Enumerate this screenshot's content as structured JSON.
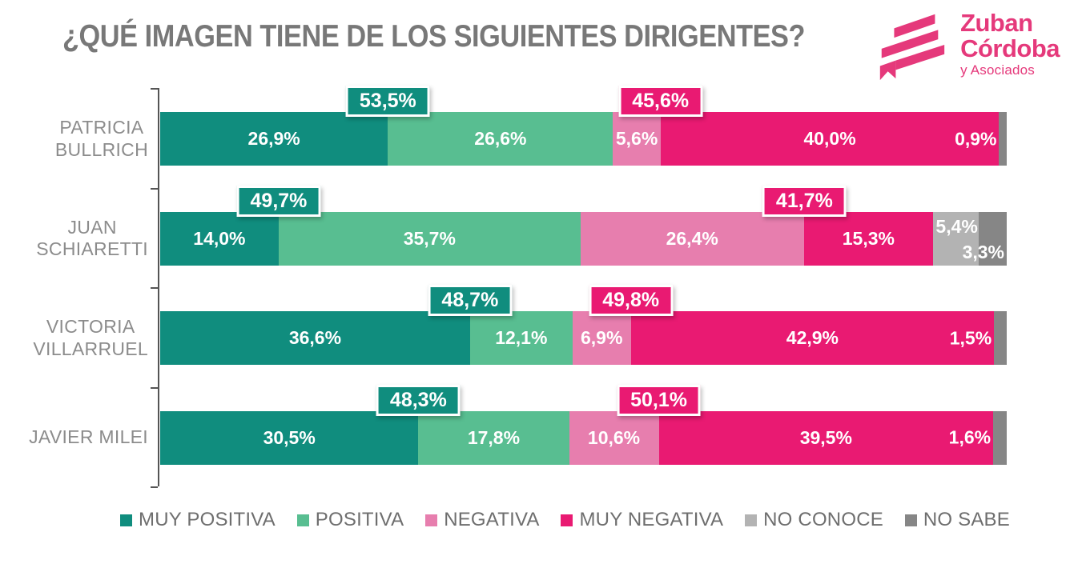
{
  "title": "¿QUÉ IMAGEN TIENE DE LOS SIGUIENTES DIRIGENTES?",
  "logo": {
    "line1": "Zuban",
    "line2": "Córdoba",
    "line3": "y Asociados",
    "color": "#E5397B"
  },
  "chart_data": {
    "type": "bar",
    "orientation": "horizontal",
    "stacked": true,
    "unit": "%",
    "xlim": [
      0,
      100
    ],
    "legend_position": "bottom",
    "grid": false,
    "series": [
      {
        "name": "MUY POSITIVA",
        "color": "#108D7E"
      },
      {
        "name": "POSITIVA",
        "color": "#58BE91"
      },
      {
        "name": "NEGATIVA",
        "color": "#E77EAE"
      },
      {
        "name": "MUY NEGATIVA",
        "color": "#E91A72"
      },
      {
        "name": "NO CONOCE",
        "color": "#B3B3B3"
      },
      {
        "name": "NO SABE",
        "color": "#868686"
      }
    ],
    "categories": [
      "PATRICIA BULLRICH",
      "JUAN SCHIARETTI",
      "VICTORIA VILLARRUEL",
      "JAVIER MILEI"
    ],
    "rows": [
      {
        "label_lines": [
          "PATRICIA",
          "BULLRICH"
        ],
        "segments": [
          {
            "series": "MUY POSITIVA",
            "value": 26.9,
            "display": "26,9%",
            "mode": "center"
          },
          {
            "series": "POSITIVA",
            "value": 26.6,
            "display": "26,6%",
            "mode": "center"
          },
          {
            "series": "NEGATIVA",
            "value": 5.6,
            "display": "5,6%",
            "mode": "center"
          },
          {
            "series": "MUY NEGATIVA",
            "value": 40.0,
            "display": "40,0%",
            "mode": "center"
          },
          {
            "series": "NO SABE",
            "value": 0.9,
            "display": "0,9%",
            "mode": "before"
          }
        ],
        "callouts": {
          "positive": {
            "value": 53.5,
            "display": "53,5%"
          },
          "negative": {
            "value": 45.6,
            "display": "45,6%"
          }
        }
      },
      {
        "label_lines": [
          "JUAN",
          "SCHIARETTI"
        ],
        "segments": [
          {
            "series": "MUY POSITIVA",
            "value": 14.0,
            "display": "14,0%",
            "mode": "center"
          },
          {
            "series": "POSITIVA",
            "value": 35.7,
            "display": "35,7%",
            "mode": "center"
          },
          {
            "series": "NEGATIVA",
            "value": 26.4,
            "display": "26,4%",
            "mode": "center"
          },
          {
            "series": "MUY NEGATIVA",
            "value": 15.3,
            "display": "15,3%",
            "mode": "center"
          },
          {
            "series": "NO CONOCE",
            "value": 5.4,
            "display": "5,4%",
            "mode": "top"
          },
          {
            "series": "NO SABE",
            "value": 3.3,
            "display": "3,3%",
            "mode": "bottom-right"
          }
        ],
        "callouts": {
          "positive": {
            "value": 49.7,
            "display": "49,7%"
          },
          "negative": {
            "value": 41.7,
            "display": "41,7%"
          }
        }
      },
      {
        "label_lines": [
          "VICTORIA",
          "VILLARRUEL"
        ],
        "segments": [
          {
            "series": "MUY POSITIVA",
            "value": 36.6,
            "display": "36,6%",
            "mode": "center"
          },
          {
            "series": "POSITIVA",
            "value": 12.1,
            "display": "12,1%",
            "mode": "center"
          },
          {
            "series": "NEGATIVA",
            "value": 6.9,
            "display": "6,9%",
            "mode": "center"
          },
          {
            "series": "MUY NEGATIVA",
            "value": 42.9,
            "display": "42,9%",
            "mode": "center"
          },
          {
            "series": "NO SABE",
            "value": 1.5,
            "display": "1,5%",
            "mode": "before"
          }
        ],
        "callouts": {
          "positive": {
            "value": 48.7,
            "display": "48,7%"
          },
          "negative": {
            "value": 49.8,
            "display": "49,8%"
          }
        }
      },
      {
        "label_lines": [
          "JAVIER MILEI"
        ],
        "segments": [
          {
            "series": "MUY POSITIVA",
            "value": 30.5,
            "display": "30,5%",
            "mode": "center"
          },
          {
            "series": "POSITIVA",
            "value": 17.8,
            "display": "17,8%",
            "mode": "center"
          },
          {
            "series": "NEGATIVA",
            "value": 10.6,
            "display": "10,6%",
            "mode": "center"
          },
          {
            "series": "MUY NEGATIVA",
            "value": 39.5,
            "display": "39,5%",
            "mode": "center"
          },
          {
            "series": "NO SABE",
            "value": 1.6,
            "display": "1,6%",
            "mode": "before"
          }
        ],
        "callouts": {
          "positive": {
            "value": 48.3,
            "display": "48,3%"
          },
          "negative": {
            "value": 50.1,
            "display": "50,1%"
          }
        }
      }
    ]
  }
}
